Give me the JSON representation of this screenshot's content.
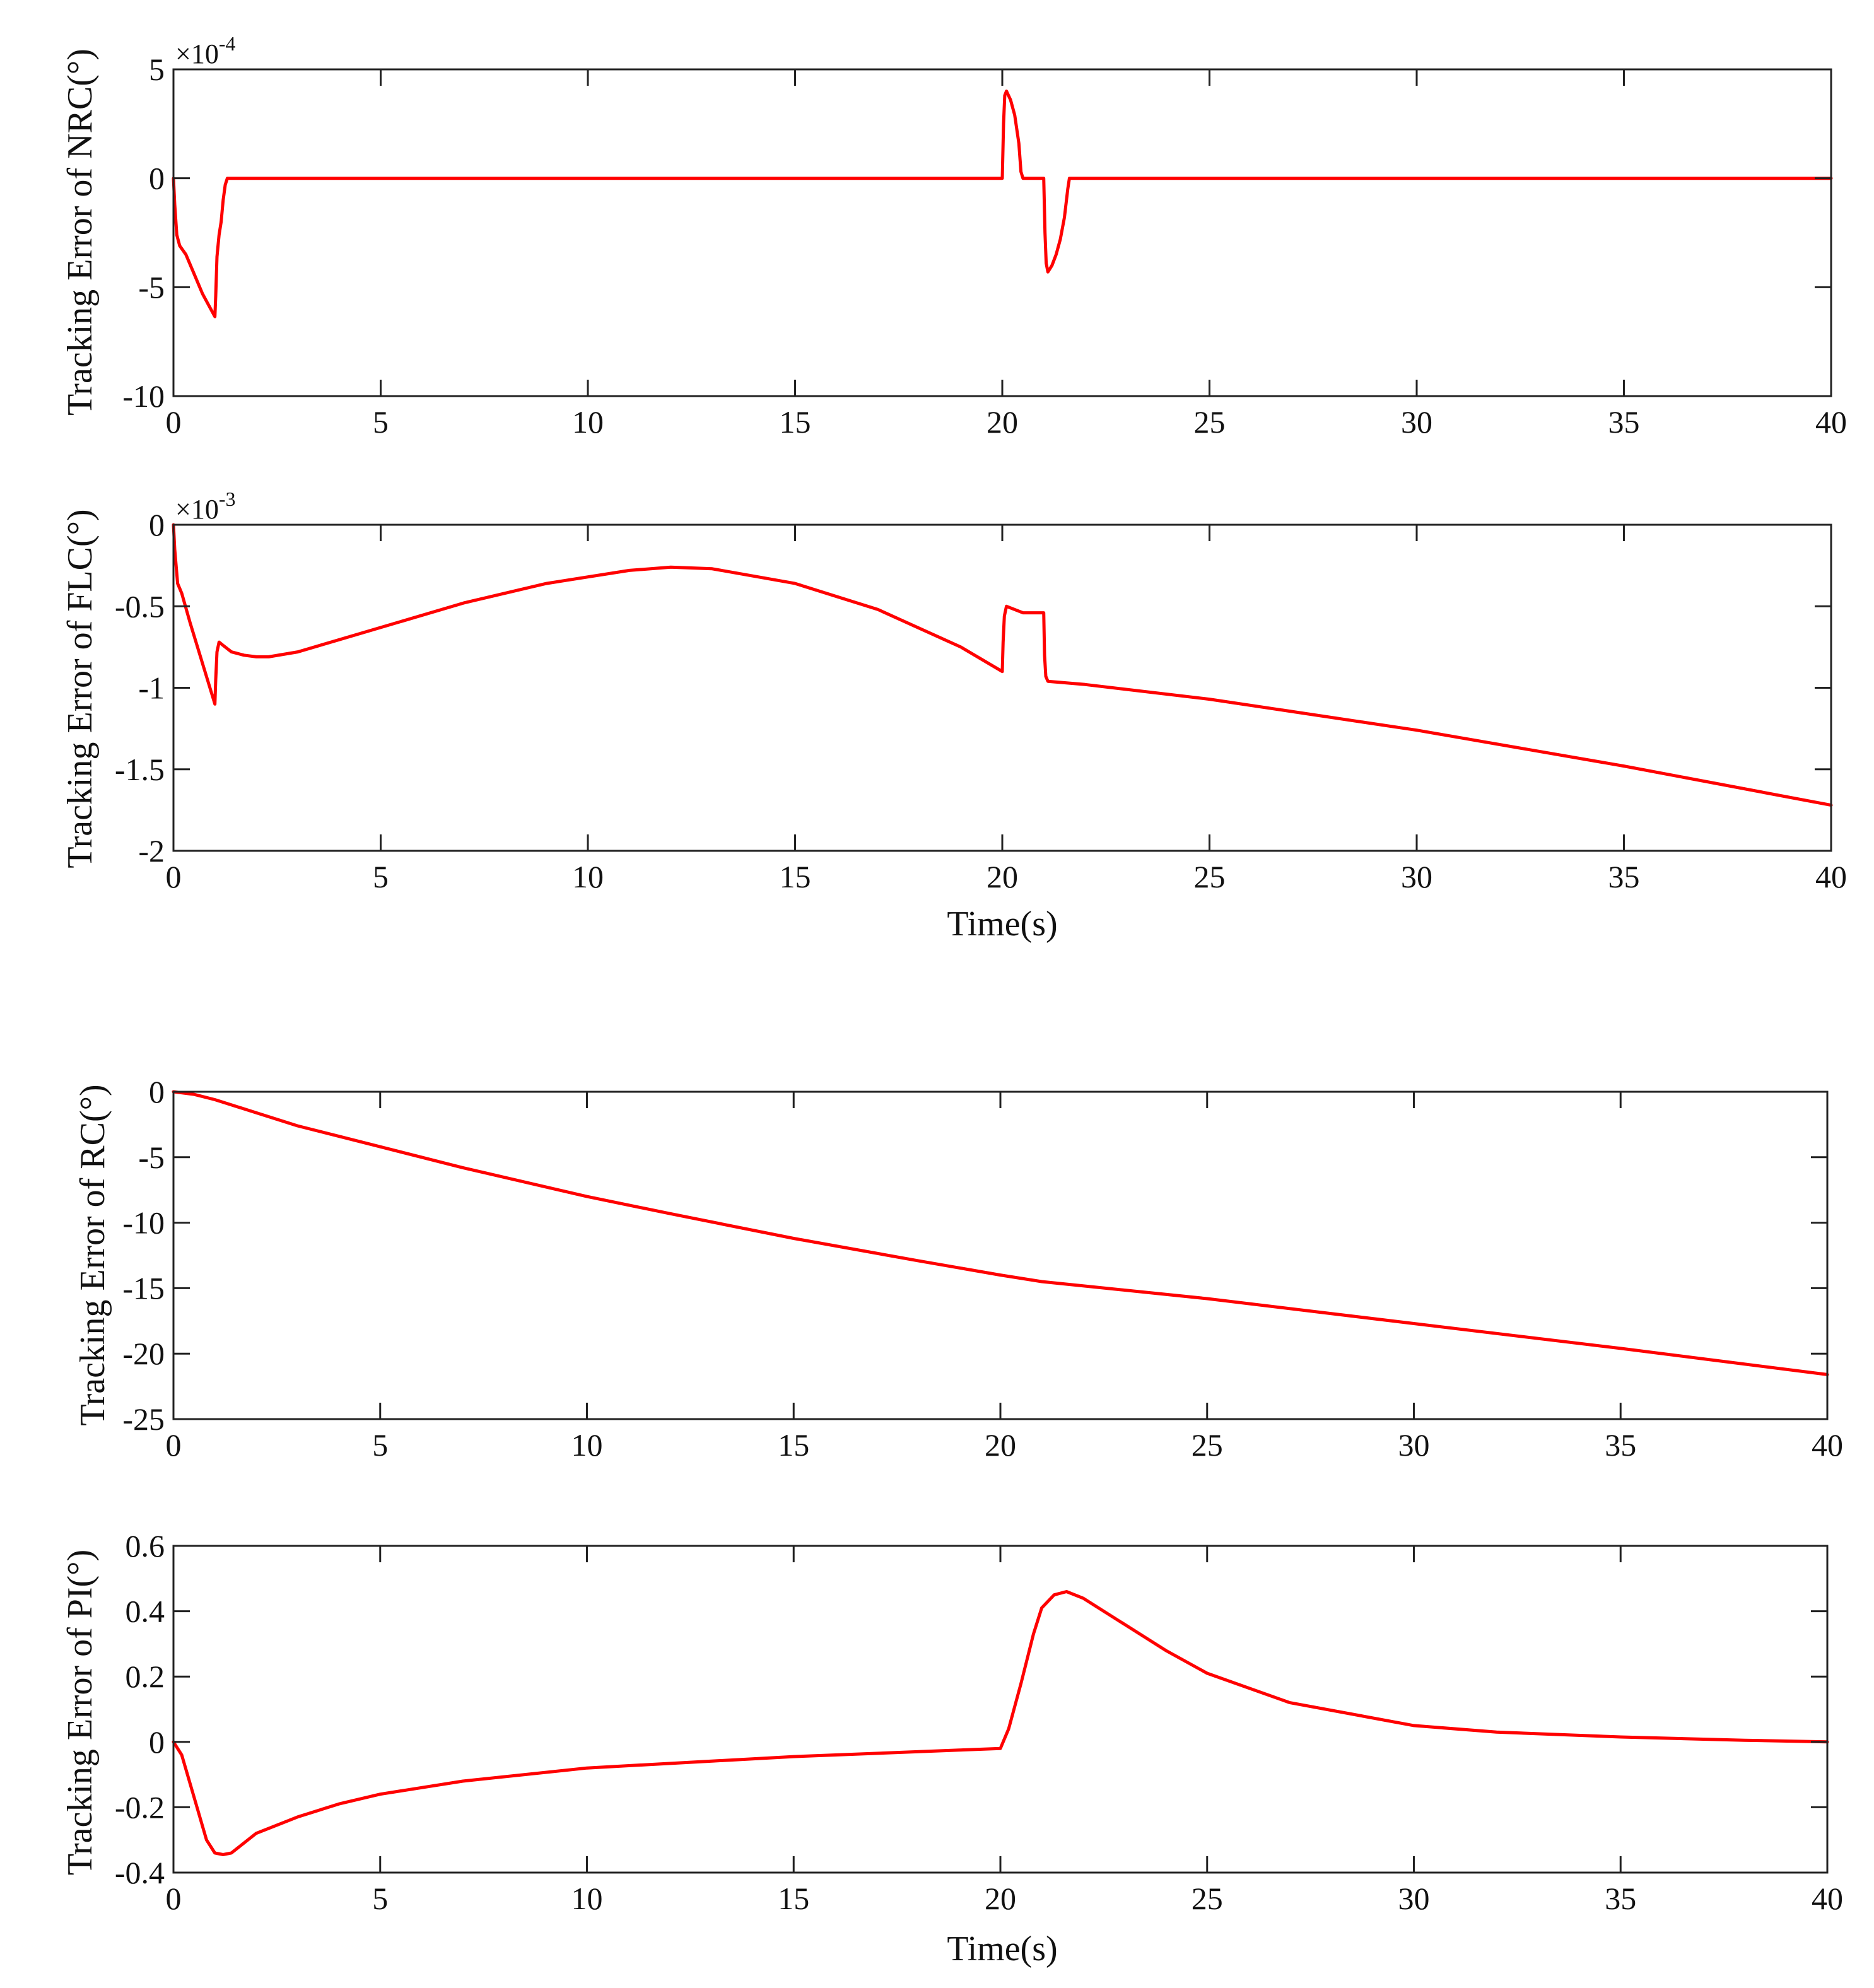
{
  "line_color": "#ff0000",
  "chart_data": [
    {
      "type": "line",
      "title": "",
      "xlabel": "",
      "ylabel": "Tracking Error of NRC(°)",
      "exponent_prefix": "×10",
      "exponent_power": "-4",
      "xlim": [
        0,
        40
      ],
      "ylim": [
        -10,
        5
      ],
      "xticks": [
        0,
        5,
        10,
        15,
        20,
        25,
        30,
        35,
        40
      ],
      "yticks": [
        -10,
        -5,
        0,
        5
      ],
      "series": [
        {
          "name": "NRC",
          "x": [
            0,
            0.03,
            0.08,
            0.15,
            0.3,
            0.5,
            0.7,
            0.9,
            1.0,
            1.02,
            1.05,
            1.1,
            1.15,
            1.2,
            1.25,
            1.3,
            2,
            5,
            10,
            15,
            19.5,
            20.0,
            20.03,
            20.06,
            20.1,
            20.2,
            20.3,
            20.4,
            20.45,
            20.5,
            21.0,
            21.03,
            21.06,
            21.1,
            21.2,
            21.3,
            21.4,
            21.5,
            21.58,
            21.62,
            22,
            25,
            30,
            35,
            40
          ],
          "y": [
            0,
            -1.2,
            -2.6,
            -3.1,
            -3.5,
            -4.4,
            -5.3,
            -6.0,
            -6.35,
            -5.4,
            -3.6,
            -2.6,
            -2.0,
            -1.0,
            -0.3,
            0,
            0,
            0,
            0,
            0,
            0,
            0,
            2.5,
            3.8,
            4.0,
            3.6,
            2.9,
            1.6,
            0.3,
            0,
            0,
            -2.5,
            -3.9,
            -4.3,
            -4.0,
            -3.5,
            -2.8,
            -1.8,
            -0.5,
            0,
            0,
            0,
            0,
            0,
            0
          ]
        }
      ]
    },
    {
      "type": "line",
      "title": "",
      "xlabel": "Time(s)",
      "ylabel": "Tracking Error of FLC(°)",
      "exponent_prefix": "×10",
      "exponent_power": "-3",
      "xlim": [
        0,
        40
      ],
      "ylim": [
        -2,
        0
      ],
      "xticks": [
        0,
        5,
        10,
        15,
        20,
        25,
        30,
        35,
        40
      ],
      "yticks": [
        -2,
        -1.5,
        -1,
        -0.5,
        0
      ],
      "series": [
        {
          "name": "FLC",
          "x": [
            0,
            0.03,
            0.1,
            0.2,
            0.4,
            0.7,
            1.0,
            1.02,
            1.05,
            1.1,
            1.2,
            1.4,
            1.7,
            2.0,
            2.3,
            3,
            5,
            7,
            9,
            11,
            12,
            13,
            15,
            17,
            19,
            20.0,
            20.02,
            20.05,
            20.1,
            20.3,
            20.5,
            21.0,
            21.02,
            21.05,
            21.1,
            22,
            25,
            30,
            35,
            40
          ],
          "y": [
            0,
            -0.15,
            -0.36,
            -0.42,
            -0.6,
            -0.85,
            -1.1,
            -0.95,
            -0.78,
            -0.72,
            -0.74,
            -0.78,
            -0.8,
            -0.81,
            -0.81,
            -0.78,
            -0.63,
            -0.48,
            -0.36,
            -0.28,
            -0.26,
            -0.27,
            -0.36,
            -0.52,
            -0.75,
            -0.9,
            -0.72,
            -0.56,
            -0.5,
            -0.52,
            -0.54,
            -0.54,
            -0.8,
            -0.93,
            -0.96,
            -0.98,
            -1.07,
            -1.26,
            -1.48,
            -1.72
          ]
        }
      ]
    },
    {
      "type": "line",
      "title": "",
      "xlabel": "",
      "ylabel": "Tracking Error of RC(°)",
      "xlim": [
        0,
        40
      ],
      "ylim": [
        -25,
        0
      ],
      "xticks": [
        0,
        5,
        10,
        15,
        20,
        25,
        30,
        35,
        40
      ],
      "yticks": [
        -25,
        -20,
        -15,
        -10,
        -5,
        0
      ],
      "series": [
        {
          "name": "RC",
          "x": [
            0,
            0.5,
            1,
            2,
            3,
            4,
            5,
            7,
            10,
            12,
            15,
            18,
            20,
            21,
            25,
            30,
            35,
            40
          ],
          "y": [
            0,
            -0.2,
            -0.6,
            -1.6,
            -2.6,
            -3.4,
            -4.2,
            -5.8,
            -8.0,
            -9.3,
            -11.2,
            -12.9,
            -14.0,
            -14.5,
            -15.8,
            -17.7,
            -19.6,
            -21.6
          ]
        }
      ]
    },
    {
      "type": "line",
      "title": "",
      "xlabel": "Time(s)",
      "ylabel": "Tracking Error of PI(°)",
      "xlim": [
        0,
        40
      ],
      "ylim": [
        -0.4,
        0.6
      ],
      "xticks": [
        0,
        5,
        10,
        15,
        20,
        25,
        30,
        35,
        40
      ],
      "yticks": [
        -0.4,
        -0.2,
        0,
        0.2,
        0.4,
        0.6
      ],
      "series": [
        {
          "name": "PI",
          "x": [
            0,
            0.2,
            0.5,
            0.8,
            1.0,
            1.2,
            1.4,
            1.7,
            2.0,
            3,
            4,
            5,
            7,
            10,
            15,
            19,
            20,
            20.2,
            20.5,
            20.8,
            21.0,
            21.3,
            21.6,
            22,
            23,
            24,
            25,
            27,
            30,
            32,
            35,
            38,
            40
          ],
          "y": [
            0,
            -0.04,
            -0.17,
            -0.3,
            -0.34,
            -0.345,
            -0.34,
            -0.31,
            -0.28,
            -0.23,
            -0.19,
            -0.16,
            -0.12,
            -0.08,
            -0.045,
            -0.025,
            -0.02,
            0.04,
            0.18,
            0.33,
            0.41,
            0.45,
            0.46,
            0.44,
            0.36,
            0.28,
            0.21,
            0.12,
            0.05,
            0.03,
            0.015,
            0.005,
            0.0
          ]
        }
      ]
    }
  ]
}
